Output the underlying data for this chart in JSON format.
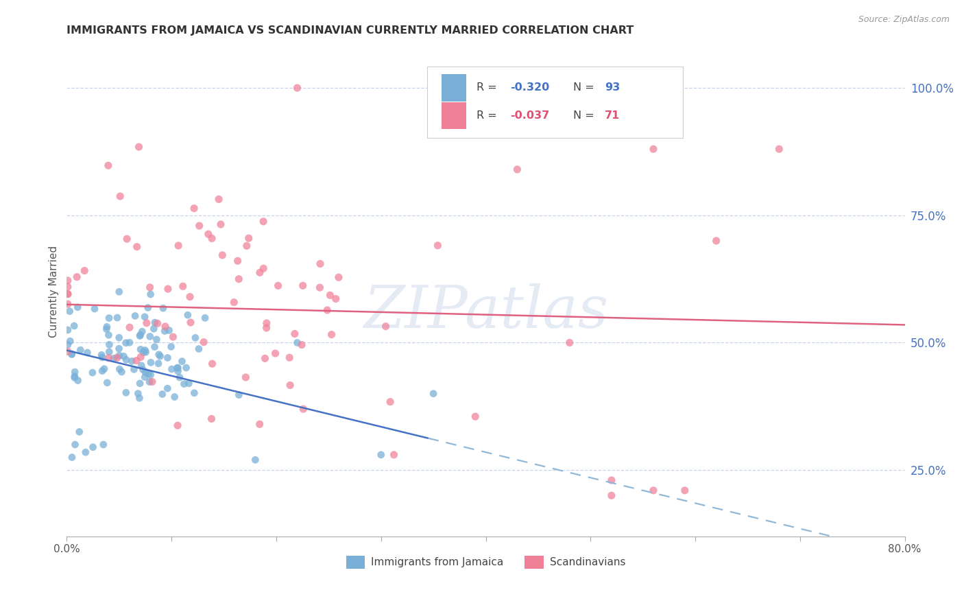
{
  "title": "IMMIGRANTS FROM JAMAICA VS SCANDINAVIAN CURRENTLY MARRIED CORRELATION CHART",
  "source": "Source: ZipAtlas.com",
  "ylabel": "Currently Married",
  "legend_bottom": [
    "Immigrants from Jamaica",
    "Scandinavians"
  ],
  "jamaica_color": "#7ab0d8",
  "scandinavian_color": "#f08098",
  "jamaica_R": -0.32,
  "jamaica_N": 93,
  "scandinavian_R": -0.037,
  "scandinavian_N": 71,
  "xlim": [
    0.0,
    0.8
  ],
  "ylim": [
    0.12,
    1.08
  ],
  "background_color": "#ffffff",
  "grid_color": "#c8d4e8",
  "watermark": "ZIPatlas",
  "jamaica_trend_color": "#4472c4",
  "scandinavian_trend_color": "#e06080",
  "jamaica_trend_dashed_color": "#90b8d8",
  "seed": 42,
  "yticks": [
    1.0,
    0.75,
    0.5,
    0.25
  ],
  "xticks": [
    0.0,
    0.1,
    0.2,
    0.3,
    0.4,
    0.5,
    0.6,
    0.7,
    0.8
  ]
}
